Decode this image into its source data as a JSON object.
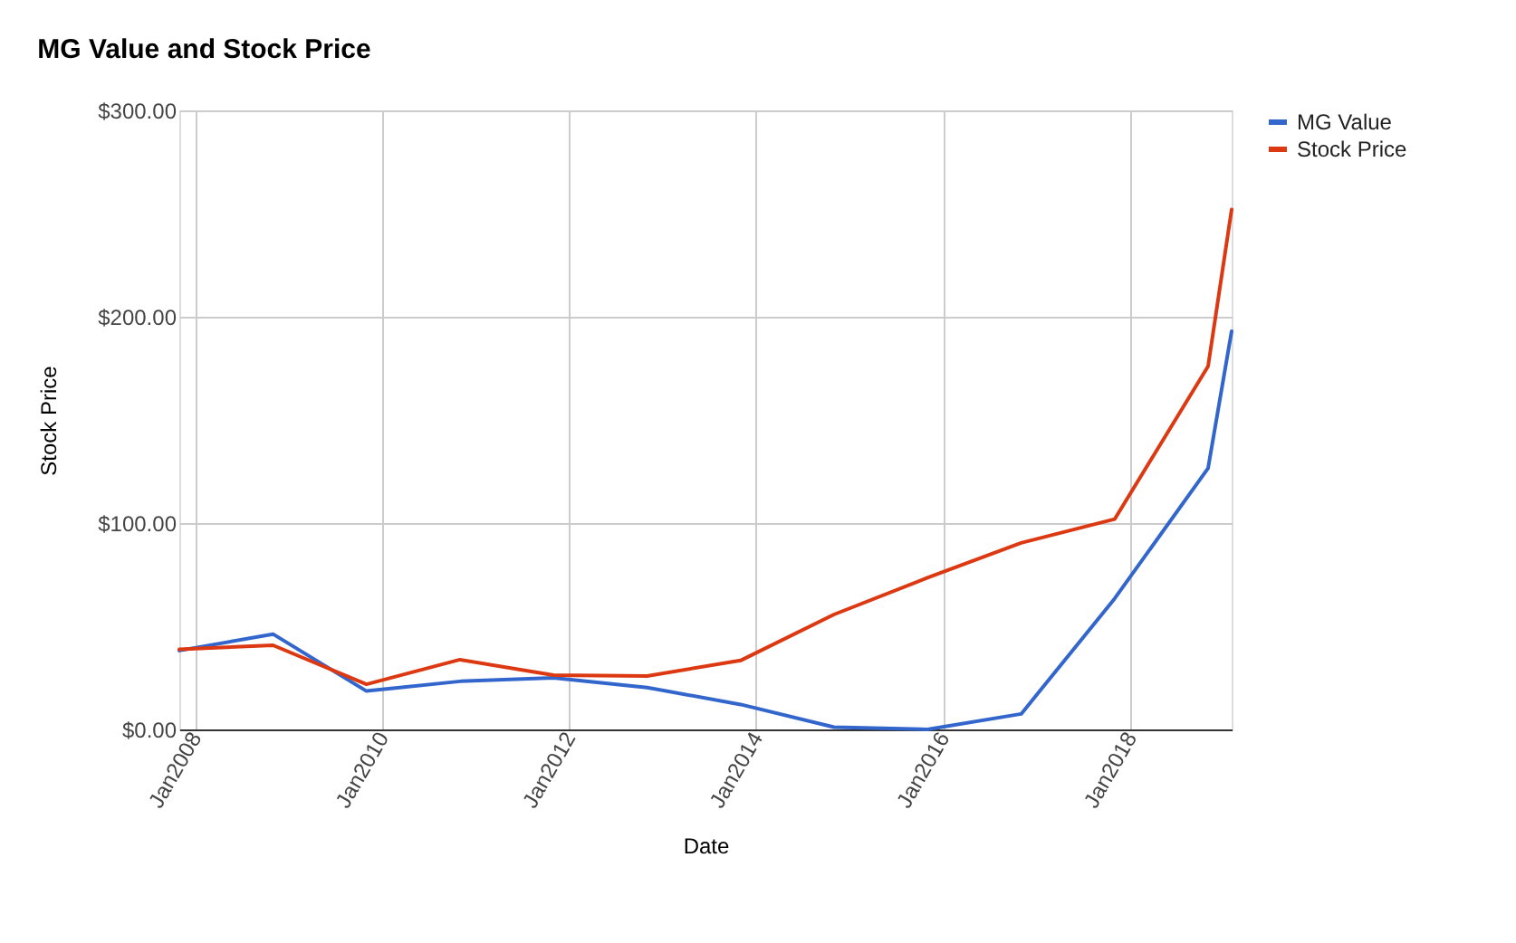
{
  "chart_data": {
    "type": "line",
    "title": "MG Value and Stock Price",
    "xlabel": "Date",
    "ylabel": "Stock Price",
    "x": [
      "2007-11",
      "2008-11",
      "2009-11",
      "2010-11",
      "2011-11",
      "2012-11",
      "2013-11",
      "2014-11",
      "2015-11",
      "2016-11",
      "2017-11",
      "2018-11",
      "2019-02"
    ],
    "series": [
      {
        "name": "MG Value",
        "color": "#3366cc",
        "values": [
          38.2,
          46.2,
          18.6,
          23.3,
          25,
          20.3,
          12.1,
          1.1,
          0,
          7.5,
          63.4,
          126.6,
          193
        ]
      },
      {
        "name": "Stock Price",
        "color": "#dc3912",
        "values": [
          38.8,
          40.8,
          21.9,
          33.8,
          26.3,
          25.9,
          33.4,
          55.7,
          73.5,
          90.4,
          101.9,
          176,
          252
        ]
      }
    ],
    "xlim": [
      "2007-11",
      "2019-02"
    ],
    "xticks": [
      {
        "value": "2008-01",
        "label": "Jan2008"
      },
      {
        "value": "2010-01",
        "label": "Jan2010"
      },
      {
        "value": "2012-01",
        "label": "Jan2012"
      },
      {
        "value": "2014-01",
        "label": "Jan2014"
      },
      {
        "value": "2016-01",
        "label": "Jan2016"
      },
      {
        "value": "2018-01",
        "label": "Jan2018"
      }
    ],
    "ylim": [
      0,
      300
    ],
    "yticks": [
      {
        "value": 0,
        "label": "$0.00"
      },
      {
        "value": 100,
        "label": "$100.00"
      },
      {
        "value": 200,
        "label": "$200.00"
      },
      {
        "value": 300,
        "label": "$300.00"
      }
    ],
    "grid": true,
    "legend": "top right",
    "line_style": "solid",
    "marker": "none"
  }
}
